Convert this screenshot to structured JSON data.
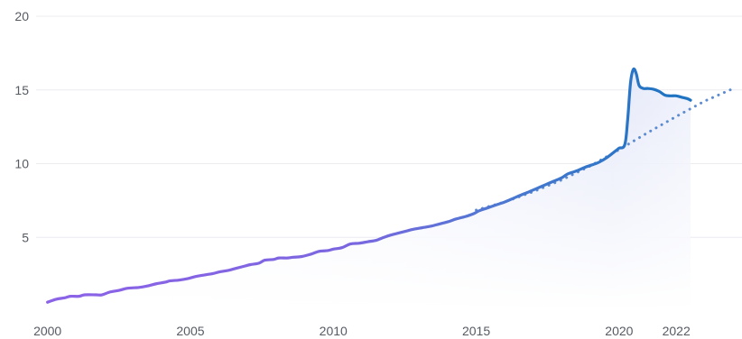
{
  "chart_data": {
    "type": "line",
    "title": "",
    "xlabel": "",
    "ylabel": "",
    "xlim": [
      1999.6,
      2024.3
    ],
    "ylim": [
      0,
      20
    ],
    "grid": true,
    "legend": "none",
    "x_ticks": [
      {
        "value": 2000,
        "label": "2000"
      },
      {
        "value": 2005,
        "label": "2005"
      },
      {
        "value": 2010,
        "label": "2010"
      },
      {
        "value": 2015,
        "label": "2015"
      },
      {
        "value": 2020,
        "label": "2020"
      },
      {
        "value": 2022,
        "label": "2022"
      }
    ],
    "y_ticks": [
      {
        "value": 5,
        "label": "5"
      },
      {
        "value": 10,
        "label": "10"
      },
      {
        "value": 15,
        "label": "15"
      },
      {
        "value": 20,
        "label": "20"
      }
    ],
    "colors": {
      "early_line": "#8a63e6",
      "late_line": "#1f74c2",
      "trend": "#5b8bd0",
      "fill": "#e6e9fa",
      "gridline": "#ececf0",
      "tick_text": "#555a63"
    },
    "series": [
      {
        "role": "actual",
        "style": "solid",
        "points": [
          [
            2000.0,
            0.6
          ],
          [
            2000.3,
            0.8
          ],
          [
            2000.6,
            0.9
          ],
          [
            2000.8,
            1.0
          ],
          [
            2001.1,
            1.0
          ],
          [
            2001.3,
            1.1
          ],
          [
            2001.7,
            1.1
          ],
          [
            2001.9,
            1.1
          ],
          [
            2002.2,
            1.3
          ],
          [
            2002.5,
            1.4
          ],
          [
            2002.8,
            1.55
          ],
          [
            2003.2,
            1.6
          ],
          [
            2003.5,
            1.7
          ],
          [
            2003.8,
            1.85
          ],
          [
            2004.1,
            1.95
          ],
          [
            2004.3,
            2.05
          ],
          [
            2004.6,
            2.1
          ],
          [
            2004.9,
            2.2
          ],
          [
            2005.2,
            2.35
          ],
          [
            2005.5,
            2.45
          ],
          [
            2005.8,
            2.55
          ],
          [
            2006.0,
            2.65
          ],
          [
            2006.3,
            2.75
          ],
          [
            2006.6,
            2.9
          ],
          [
            2006.9,
            3.05
          ],
          [
            2007.1,
            3.15
          ],
          [
            2007.4,
            3.25
          ],
          [
            2007.6,
            3.45
          ],
          [
            2007.9,
            3.5
          ],
          [
            2008.1,
            3.6
          ],
          [
            2008.4,
            3.6
          ],
          [
            2008.6,
            3.65
          ],
          [
            2008.9,
            3.7
          ],
          [
            2009.2,
            3.85
          ],
          [
            2009.5,
            4.05
          ],
          [
            2009.8,
            4.1
          ],
          [
            2010.0,
            4.2
          ],
          [
            2010.3,
            4.3
          ],
          [
            2010.6,
            4.55
          ],
          [
            2010.9,
            4.6
          ],
          [
            2011.2,
            4.7
          ],
          [
            2011.5,
            4.8
          ],
          [
            2011.7,
            4.95
          ],
          [
            2012.0,
            5.15
          ],
          [
            2012.3,
            5.3
          ],
          [
            2012.6,
            5.45
          ],
          [
            2012.8,
            5.55
          ],
          [
            2013.1,
            5.65
          ],
          [
            2013.4,
            5.75
          ],
          [
            2013.7,
            5.9
          ],
          [
            2014.0,
            6.05
          ],
          [
            2014.3,
            6.25
          ],
          [
            2014.6,
            6.4
          ],
          [
            2014.9,
            6.6
          ],
          [
            2015.1,
            6.8
          ],
          [
            2015.4,
            7.0
          ],
          [
            2015.7,
            7.2
          ],
          [
            2016.0,
            7.4
          ],
          [
            2016.3,
            7.65
          ],
          [
            2016.6,
            7.9
          ],
          [
            2016.8,
            8.05
          ],
          [
            2017.1,
            8.3
          ],
          [
            2017.4,
            8.55
          ],
          [
            2017.7,
            8.8
          ],
          [
            2018.0,
            9.05
          ],
          [
            2018.2,
            9.3
          ],
          [
            2018.5,
            9.5
          ],
          [
            2018.8,
            9.75
          ],
          [
            2019.1,
            9.95
          ],
          [
            2019.3,
            10.1
          ],
          [
            2019.6,
            10.45
          ],
          [
            2019.9,
            10.9
          ],
          [
            2020.0,
            11.05
          ],
          [
            2020.2,
            11.3
          ],
          [
            2020.3,
            13.0
          ],
          [
            2020.4,
            15.5
          ],
          [
            2020.5,
            16.4
          ],
          [
            2020.6,
            16.1
          ],
          [
            2020.7,
            15.3
          ],
          [
            2020.85,
            15.1
          ],
          [
            2021.0,
            15.1
          ],
          [
            2021.2,
            15.05
          ],
          [
            2021.4,
            14.9
          ],
          [
            2021.6,
            14.65
          ],
          [
            2021.8,
            14.6
          ],
          [
            2022.0,
            14.6
          ],
          [
            2022.2,
            14.5
          ],
          [
            2022.4,
            14.4
          ],
          [
            2022.5,
            14.3
          ]
        ]
      },
      {
        "role": "trend",
        "style": "dotted",
        "points": [
          [
            2015.0,
            6.85
          ],
          [
            2016.0,
            7.4
          ],
          [
            2017.0,
            8.1
          ],
          [
            2018.0,
            8.9
          ],
          [
            2019.0,
            9.85
          ],
          [
            2020.0,
            10.95
          ],
          [
            2021.0,
            12.1
          ],
          [
            2022.0,
            13.2
          ],
          [
            2023.0,
            14.25
          ],
          [
            2024.0,
            15.1
          ]
        ]
      }
    ]
  }
}
